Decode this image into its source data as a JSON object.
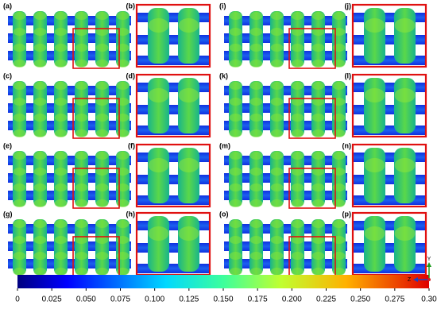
{
  "panels": {
    "labels": [
      "(a)",
      "(b)",
      "(c)",
      "(d)",
      "(e)",
      "(f)",
      "(g)",
      "(h)",
      "(i)",
      "(j)",
      "(k)",
      "(l)",
      "(m)",
      "(n)",
      "(o)",
      "(p)"
    ]
  },
  "colorbar": {
    "range": [
      0,
      0.3
    ],
    "ticks": [
      0,
      0.025,
      {
        "value": 0.05,
        "label": "0.050"
      },
      0.075,
      {
        "value": 0.1,
        "label": "0.100"
      },
      0.125,
      {
        "value": 0.15,
        "label": "0.150"
      },
      0.175,
      {
        "value": 0.2,
        "label": "0.200"
      },
      0.225,
      {
        "value": 0.25,
        "label": "0.250"
      },
      0.275,
      {
        "value": 0.3,
        "label": "0.30"
      }
    ]
  },
  "axes": {
    "vertical": "Y",
    "horizontal": "Z"
  }
}
